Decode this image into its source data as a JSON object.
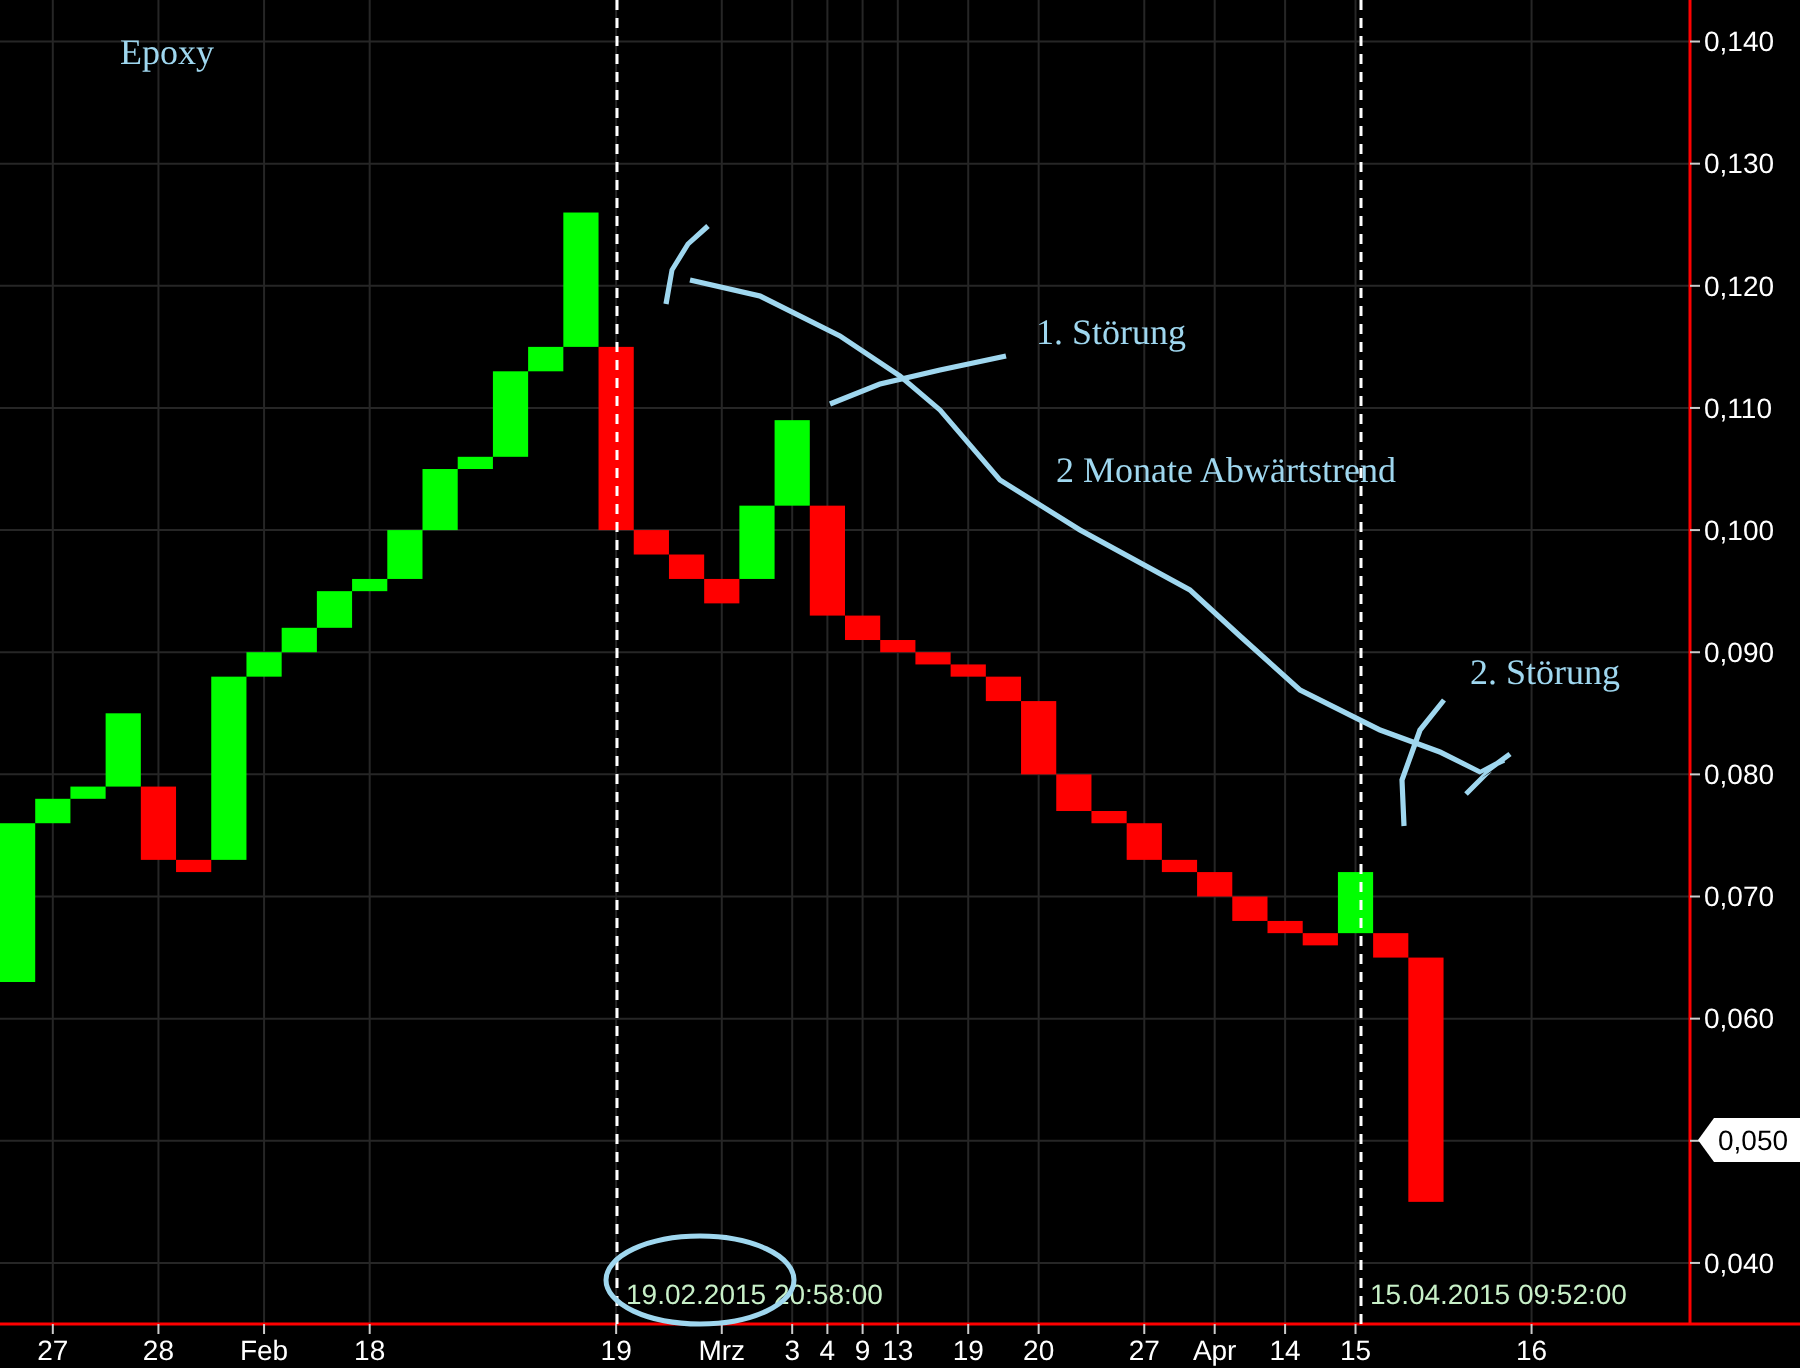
{
  "chart_data": {
    "type": "bar",
    "title": "Epoxy",
    "categories": [
      null,
      "27",
      null,
      null,
      "28",
      null,
      null,
      "Feb",
      null,
      null,
      "18",
      null,
      null,
      null,
      null,
      null,
      null,
      "19",
      null,
      null,
      "Mrz",
      null,
      "3",
      "4",
      "9",
      "13",
      null,
      "19",
      null,
      "20",
      null,
      null,
      "27",
      null,
      "Apr",
      null,
      "14",
      null,
      "15",
      null,
      null,
      null,
      null,
      "16",
      null,
      null,
      null,
      null
    ],
    "base": [
      0.063,
      0.076,
      0.078,
      0.079,
      0.079,
      0.073,
      0.073,
      0.088,
      0.09,
      0.092,
      0.095,
      0.096,
      0.1,
      0.105,
      0.106,
      0.113,
      0.115,
      0.115,
      0.1,
      0.098,
      0.096,
      0.096,
      0.102,
      0.102,
      0.093,
      0.091,
      0.09,
      0.089,
      0.088,
      0.086,
      0.08,
      0.077,
      0.076,
      0.073,
      0.072,
      0.07,
      0.068,
      0.067,
      0.067,
      0.067,
      0.065,
      null,
      null,
      null,
      null,
      null,
      null,
      null
    ],
    "values": [
      0.013,
      0.002,
      0.001,
      0.006,
      -0.006,
      -0.001,
      0.015,
      0.002,
      0.002,
      0.003,
      0.001,
      0.004,
      0.005,
      0.001,
      0.007,
      0.002,
      0.011,
      -0.015,
      -0.002,
      -0.002,
      -0.002,
      0.006,
      0.007,
      -0.009,
      -0.002,
      -0.001,
      -0.001,
      -0.001,
      -0.002,
      -0.006,
      -0.003,
      -0.001,
      -0.003,
      -0.001,
      -0.002,
      -0.002,
      -0.001,
      -0.001,
      0.005,
      -0.002,
      -0.02,
      null,
      null,
      null,
      null,
      null,
      null,
      null
    ],
    "colors": [
      "#00ff00",
      "#00ff00",
      "#00ff00",
      "#00ff00",
      "#ff0000",
      "#ff0000",
      "#00ff00",
      "#00ff00",
      "#00ff00",
      "#00ff00",
      "#00ff00",
      "#00ff00",
      "#00ff00",
      "#00ff00",
      "#00ff00",
      "#00ff00",
      "#00ff00",
      "#ff0000",
      "#ff0000",
      "#ff0000",
      "#ff0000",
      "#00ff00",
      "#00ff00",
      "#ff0000",
      "#ff0000",
      "#ff0000",
      "#ff0000",
      "#ff0000",
      "#ff0000",
      "#ff0000",
      "#ff0000",
      "#ff0000",
      "#ff0000",
      "#ff0000",
      "#ff0000",
      "#ff0000",
      "#ff0000",
      "#ff0000",
      "#00ff00",
      "#ff0000",
      "#ff0000",
      null,
      null,
      null,
      null,
      null,
      null,
      null
    ],
    "ylim": [
      0.035,
      0.1434
    ],
    "yticks": [
      {
        "value": 0.04,
        "label": "0,040"
      },
      {
        "value": 0.05,
        "label": null
      },
      {
        "value": 0.06,
        "label": "0,060"
      },
      {
        "value": 0.07,
        "label": "0,070"
      },
      {
        "value": 0.08,
        "label": "0,080"
      },
      {
        "value": 0.09,
        "label": "0,090"
      },
      {
        "value": 0.1,
        "label": "0,100"
      },
      {
        "value": 0.11,
        "label": "0,110"
      },
      {
        "value": 0.12,
        "label": "0,120"
      },
      {
        "value": 0.13,
        "label": "0,130"
      },
      {
        "value": 0.14,
        "label": "0,140"
      }
    ],
    "grid": true,
    "annotations": [
      "1. Störung",
      "2 Monate Abwärtstrend",
      "2. Störung",
      "0,050",
      "19.02.2015 20:58:00",
      "15.04.2015 09:52:00"
    ]
  }
}
